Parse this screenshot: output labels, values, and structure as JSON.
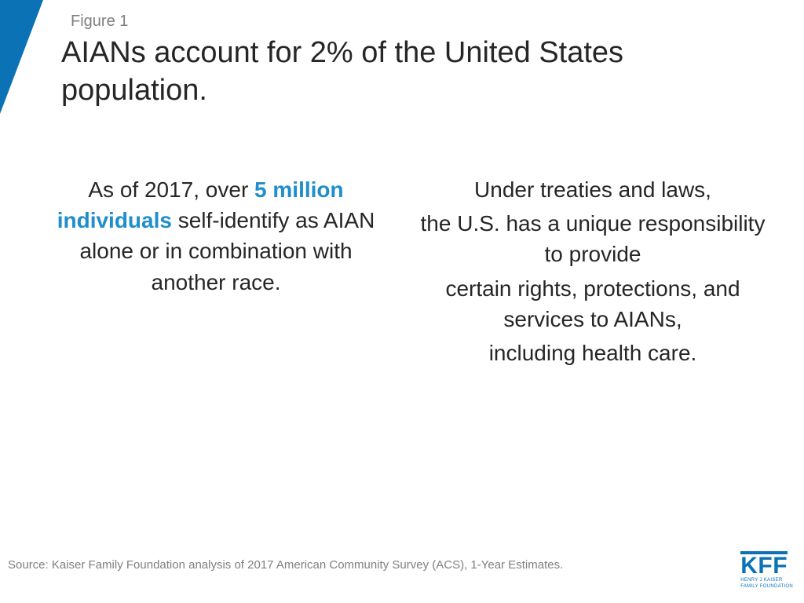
{
  "colors": {
    "brand_blue": "#0b72b5",
    "highlight_blue": "#1f8ecb",
    "title_text": "#262626",
    "muted_text": "#7f7f7f",
    "background": "#ffffff"
  },
  "typography": {
    "figure_label_fontsize": 20,
    "title_fontsize": 38,
    "body_fontsize": 28,
    "source_fontsize": 15,
    "font_family": "Arial"
  },
  "header": {
    "figure_label": "Figure 1",
    "title": "AIANs account for 2% of the United States population."
  },
  "body": {
    "left": {
      "pre": "As of 2017, over ",
      "highlight": "5 million individuals",
      "post": " self-identify as AIAN alone or in combination with another race."
    },
    "right": {
      "lines": [
        "Under treaties and laws,",
        "the U.S. has a unique responsibility to provide",
        "certain rights, protections, and services to AIANs,",
        "including health care."
      ]
    }
  },
  "footer": {
    "source": "Source: Kaiser Family Foundation analysis of 2017 American Community Survey (ACS), 1-Year Estimates.",
    "logo_text": "KFF",
    "logo_sub1": "HENRY J KAISER",
    "logo_sub2": "FAMILY FOUNDATION"
  }
}
